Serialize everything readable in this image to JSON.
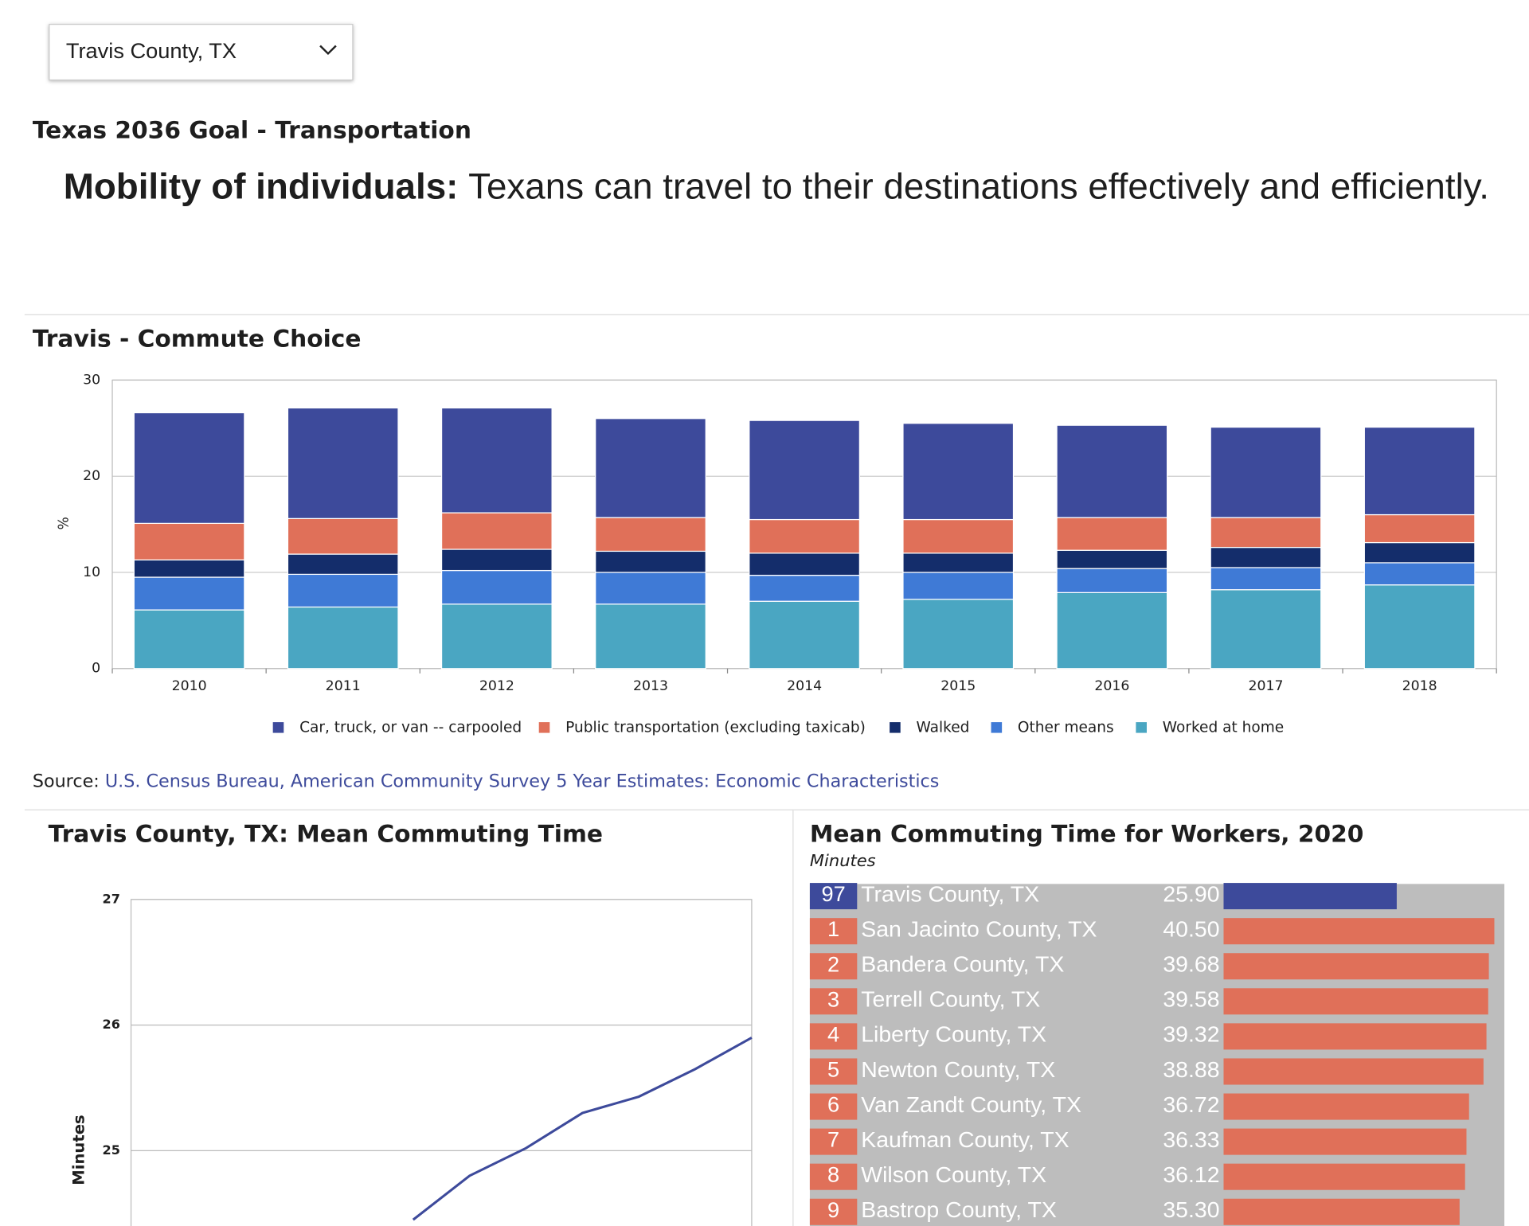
{
  "dropdown": {
    "selected": "Travis County, TX"
  },
  "goal_heading": "Texas 2036 Goal - Transportation",
  "goal_statement": {
    "label": "Mobility of individuals:",
    "text": "Texans can travel to their destinations effectively and efficiently."
  },
  "source": {
    "prefix": "Source:",
    "link": "U.S. Census Bureau, American Community Survey 5 Year Estimates: Economic Characteristics"
  },
  "chart_data": [
    {
      "type": "stacked_bar",
      "title": "Travis - Commute Choice",
      "y_label": "%",
      "categories": [
        "2010",
        "2011",
        "2012",
        "2013",
        "2014",
        "2015",
        "2016",
        "2017",
        "2018"
      ],
      "series": [
        {
          "name": "Car, truck, or van -- carpooled",
          "color": "#3d4a9b",
          "values": [
            11.5,
            11.5,
            10.9,
            10.3,
            10.3,
            10.0,
            9.6,
            9.4,
            9.1
          ]
        },
        {
          "name": "Public transportation (excluding taxicab)",
          "color": "#e07059",
          "values": [
            3.8,
            3.7,
            3.8,
            3.5,
            3.5,
            3.5,
            3.4,
            3.1,
            2.9
          ]
        },
        {
          "name": "Walked",
          "color": "#142d6b",
          "values": [
            1.8,
            2.1,
            2.2,
            2.2,
            2.3,
            2.0,
            1.9,
            2.1,
            2.1
          ]
        },
        {
          "name": "Other means",
          "color": "#3f7ad6",
          "values": [
            3.4,
            3.4,
            3.5,
            3.3,
            2.7,
            2.8,
            2.5,
            2.3,
            2.3
          ]
        },
        {
          "name": "Worked at home",
          "color": "#4aa6c2",
          "values": [
            6.1,
            6.4,
            6.7,
            6.7,
            7.0,
            7.2,
            7.9,
            8.2,
            8.7
          ]
        }
      ],
      "ylim": [
        0,
        30
      ],
      "yticks": [
        0,
        10,
        20,
        30
      ],
      "grid": true,
      "legend": "bottom"
    },
    {
      "type": "line",
      "title": "Travis County, TX: Mean Commuting Time",
      "y_label": "Minutes",
      "categories": [
        null,
        null,
        null,
        null,
        null,
        null,
        null,
        null,
        null,
        null,
        null,
        null
      ],
      "values": [
        null,
        null,
        null,
        null,
        null,
        24.45,
        24.8,
        25.02,
        25.3,
        25.43,
        25.65,
        25.9
      ],
      "color": "#3d4a9b",
      "ylim": [
        24.4,
        27
      ],
      "yticks": [
        25,
        26,
        27
      ],
      "grid": true
    },
    {
      "type": "ranked_bar",
      "title": "Mean Commuting Time for Workers, 2020",
      "subtitle": "Minutes",
      "ranks": [
        97,
        1,
        2,
        3,
        4,
        5,
        6,
        7,
        8,
        9
      ],
      "categories": [
        "Travis County, TX",
        "San Jacinto County, TX",
        "Bandera County, TX",
        "Terrell County, TX",
        "Liberty County, TX",
        "Newton County, TX",
        "Van Zandt County, TX",
        "Kaufman County, TX",
        "Wilson County, TX",
        "Bastrop County, TX"
      ],
      "values": [
        25.9,
        40.5,
        39.68,
        39.58,
        39.32,
        38.88,
        36.72,
        36.33,
        36.12,
        35.3
      ],
      "value_labels": [
        "25.90",
        "40.50",
        "39.68",
        "39.58",
        "39.32",
        "38.88",
        "36.72",
        "36.33",
        "36.12",
        "35.30"
      ],
      "colors": [
        "#3d4a9b",
        "#e07059",
        "#e07059",
        "#e07059",
        "#e07059",
        "#e07059",
        "#e07059",
        "#e07059",
        "#e07059",
        "#e07059"
      ],
      "xlim": [
        0,
        42
      ]
    }
  ]
}
